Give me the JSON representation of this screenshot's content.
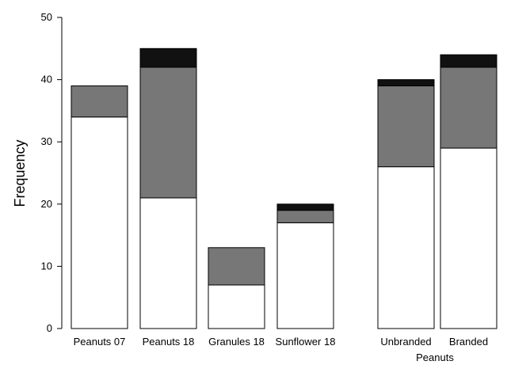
{
  "chart_data": {
    "type": "bar",
    "stacked": true,
    "title": "",
    "xlabel": "",
    "ylabel": "Frequency",
    "ylim": [
      0,
      50
    ],
    "yticks": [
      0,
      10,
      20,
      30,
      40,
      50
    ],
    "categories": [
      "Peanuts 07",
      "Peanuts 18",
      "Granules 18",
      "Sunflower 18",
      "Unbranded",
      "Branded"
    ],
    "group_label": "Peanuts",
    "series": [
      {
        "color": "#ffffff",
        "values": [
          34,
          21,
          7,
          17,
          26,
          29
        ]
      },
      {
        "color": "#777777",
        "values": [
          5,
          21,
          6,
          2,
          13,
          13
        ]
      },
      {
        "color": "#111111",
        "values": [
          0,
          3,
          0,
          1,
          1,
          2
        ]
      }
    ],
    "grid": false,
    "legend": "none"
  }
}
